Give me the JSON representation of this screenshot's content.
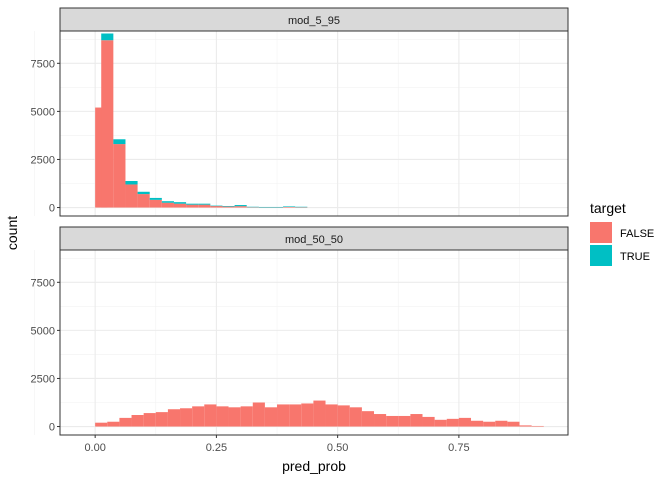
{
  "chart_data": {
    "type": "histogram",
    "xlabel": "pred_prob",
    "ylabel": "count",
    "xlim": [
      -0.0725,
      0.975
    ],
    "ylim": [
      -440,
      9180
    ],
    "x_ticks": [
      0.0,
      0.25,
      0.5,
      0.75
    ],
    "x_tick_labels": [
      "0.00",
      "0.25",
      "0.50",
      "0.75"
    ],
    "y_ticks": [
      0,
      2500,
      5000,
      7500
    ],
    "y_tick_labels": [
      "0",
      "2500",
      "5000",
      "7500"
    ],
    "grid": true,
    "stacked": true,
    "legend": {
      "title": "target",
      "placement": "right",
      "entries": [
        {
          "label": "FALSE",
          "color": "#F8766D"
        },
        {
          "label": "TRUE",
          "color": "#00BFC4"
        }
      ]
    },
    "panels": [
      {
        "strip_label": "mod_5_95",
        "bin_left_edges": [
          -0.0125,
          0.0,
          0.0125,
          0.0375,
          0.0625,
          0.0875,
          0.1125,
          0.1375,
          0.1625,
          0.1875,
          0.2125,
          0.2375,
          0.2625,
          0.2875,
          0.3125,
          0.3375,
          0.3625,
          0.3875,
          0.4125
        ],
        "bin_width": 0.025,
        "series": [
          {
            "name": "FALSE",
            "values": [
              0,
              5200,
              8700,
              3300,
              1200,
              700,
              400,
              250,
              200,
              150,
              150,
              80,
              50,
              70,
              30,
              20,
              20,
              30,
              20
            ]
          },
          {
            "name": "TRUE",
            "values": [
              0,
              0,
              350,
              250,
              180,
              120,
              100,
              80,
              80,
              50,
              50,
              20,
              30,
              60,
              10,
              10,
              10,
              30,
              20
            ]
          }
        ]
      },
      {
        "strip_label": "mod_50_50",
        "bin_left_edges": [
          0.0,
          0.025,
          0.05,
          0.075,
          0.1,
          0.125,
          0.15,
          0.175,
          0.2,
          0.225,
          0.25,
          0.275,
          0.3,
          0.325,
          0.35,
          0.375,
          0.4,
          0.425,
          0.45,
          0.475,
          0.5,
          0.525,
          0.55,
          0.575,
          0.6,
          0.625,
          0.65,
          0.675,
          0.7,
          0.725,
          0.75,
          0.775,
          0.8,
          0.825,
          0.85,
          0.875,
          0.9
        ],
        "bin_width": 0.025,
        "series": [
          {
            "name": "FALSE",
            "values": [
              200,
              250,
              450,
              600,
              700,
              750,
              900,
              950,
              1050,
              1150,
              1050,
              1000,
              1050,
              1250,
              1000,
              1150,
              1150,
              1200,
              1350,
              1150,
              1100,
              1000,
              800,
              650,
              550,
              550,
              650,
              500,
              350,
              400,
              450,
              300,
              250,
              300,
              250,
              60,
              30
            ]
          },
          {
            "name": "TRUE",
            "values": [
              0,
              0,
              0,
              0,
              0,
              0,
              0,
              0,
              0,
              0,
              0,
              0,
              0,
              0,
              0,
              0,
              0,
              0,
              0,
              0,
              0,
              0,
              0,
              0,
              0,
              0,
              0,
              0,
              0,
              0,
              0,
              0,
              0,
              0,
              0,
              0,
              0
            ]
          }
        ]
      }
    ]
  }
}
